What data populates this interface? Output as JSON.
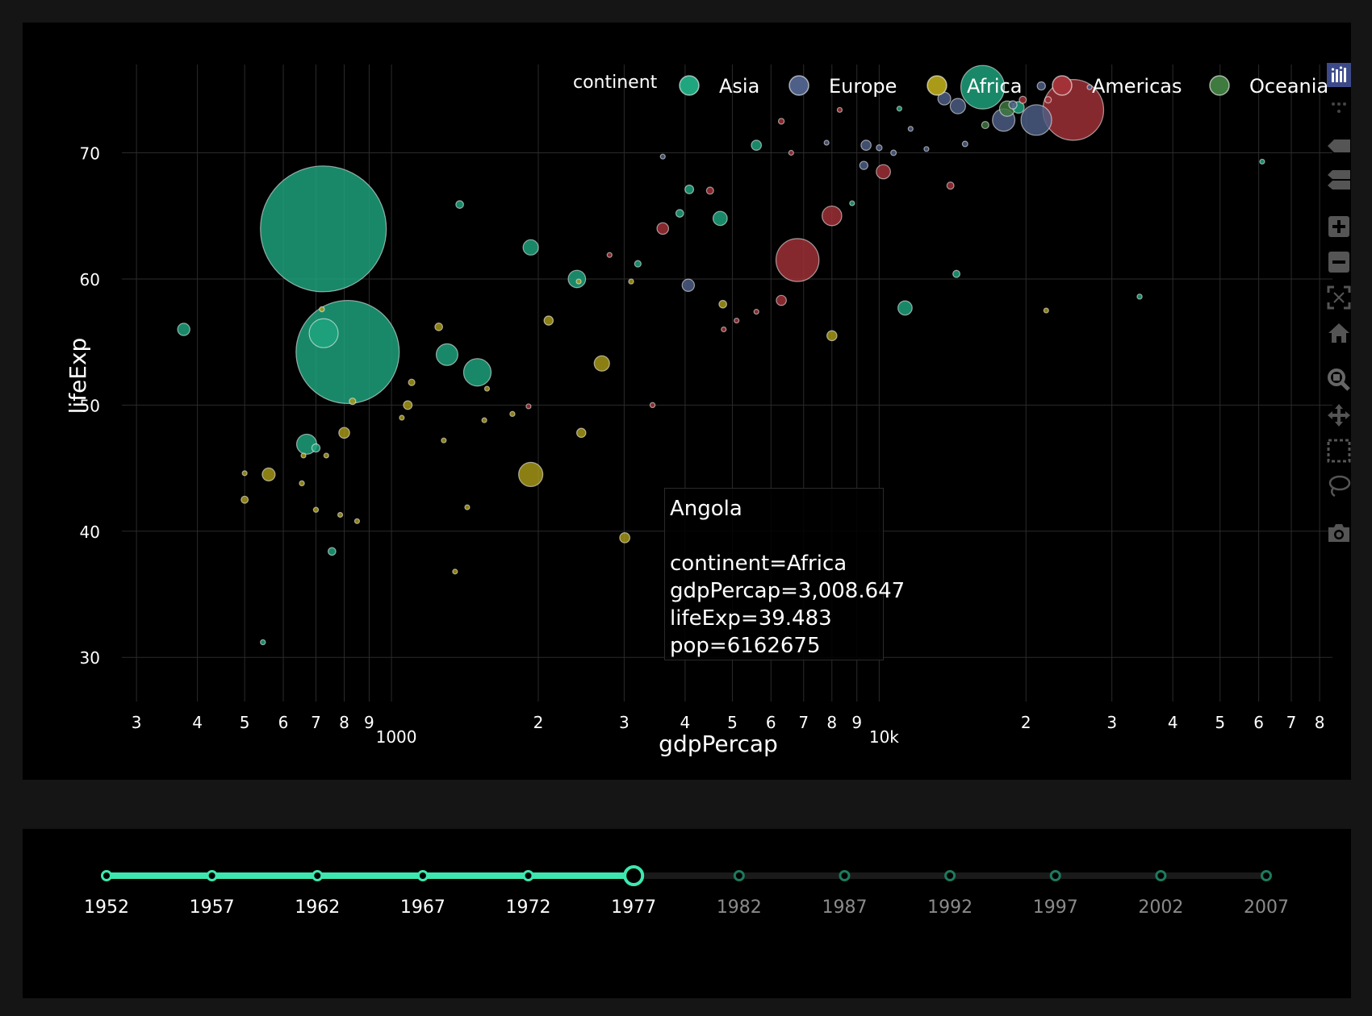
{
  "chart_data": {
    "type": "scatter",
    "title": "",
    "xlabel": "gdpPercap",
    "ylabel": "lifeExp",
    "xscale": "log",
    "xlim": [
      280,
      85000
    ],
    "ylim": [
      26.5,
      77
    ],
    "grid": true,
    "legend": {
      "title": "continent",
      "placement": "top-right",
      "entries": [
        {
          "name": "Asia",
          "color": "#1fa67f"
        },
        {
          "name": "Europe",
          "color": "#4e5f88"
        },
        {
          "name": "Africa",
          "color": "#a99b18"
        },
        {
          "name": "Americas",
          "color": "#a33238"
        },
        {
          "name": "Oceania",
          "color": "#3f7a3f"
        }
      ]
    },
    "x_major_ticks": [
      {
        "value": 1000,
        "label": "1000"
      },
      {
        "value": 10000,
        "label": "10k"
      }
    ],
    "x_minor_ticks": [
      {
        "value": 300,
        "label": "3"
      },
      {
        "value": 400,
        "label": "4"
      },
      {
        "value": 500,
        "label": "5"
      },
      {
        "value": 600,
        "label": "6"
      },
      {
        "value": 700,
        "label": "7"
      },
      {
        "value": 800,
        "label": "8"
      },
      {
        "value": 900,
        "label": "9"
      },
      {
        "value": 2000,
        "label": "2"
      },
      {
        "value": 3000,
        "label": "3"
      },
      {
        "value": 4000,
        "label": "4"
      },
      {
        "value": 5000,
        "label": "5"
      },
      {
        "value": 6000,
        "label": "6"
      },
      {
        "value": 7000,
        "label": "7"
      },
      {
        "value": 8000,
        "label": "8"
      },
      {
        "value": 9000,
        "label": "9"
      },
      {
        "value": 20000,
        "label": "2"
      },
      {
        "value": 30000,
        "label": "3"
      },
      {
        "value": 40000,
        "label": "4"
      },
      {
        "value": 50000,
        "label": "5"
      },
      {
        "value": 60000,
        "label": "6"
      },
      {
        "value": 70000,
        "label": "7"
      },
      {
        "value": 80000,
        "label": "8"
      }
    ],
    "y_ticks": [
      30,
      40,
      50,
      60,
      70
    ],
    "series": [
      {
        "name": "Asia",
        "color": "#1fa67f",
        "points": [
          {
            "x": 725,
            "y": 63.97,
            "pop": 943455000
          },
          {
            "x": 813,
            "y": 54.21,
            "pop": 634000000
          },
          {
            "x": 726,
            "y": 55.7,
            "pop": 50000000
          },
          {
            "x": 375,
            "y": 56.0,
            "pop": 9000000
          },
          {
            "x": 1380,
            "y": 65.9,
            "pop": 3500000
          },
          {
            "x": 1930,
            "y": 62.5,
            "pop": 14000000
          },
          {
            "x": 2400,
            "y": 60.0,
            "pop": 18000000
          },
          {
            "x": 1300,
            "y": 54.0,
            "pop": 28000000
          },
          {
            "x": 1500,
            "y": 52.6,
            "pop": 45000000
          },
          {
            "x": 670,
            "y": 46.9,
            "pop": 24000000
          },
          {
            "x": 700,
            "y": 46.6,
            "pop": 4000000
          },
          {
            "x": 545,
            "y": 31.2,
            "pop": 1500000
          },
          {
            "x": 755,
            "y": 38.4,
            "pop": 3500000
          },
          {
            "x": 3200,
            "y": 61.2,
            "pop": 2500000
          },
          {
            "x": 3900,
            "y": 65.2,
            "pop": 3500000
          },
          {
            "x": 4080,
            "y": 67.1,
            "pop": 4500000
          },
          {
            "x": 4720,
            "y": 64.8,
            "pop": 12000000
          },
          {
            "x": 5600,
            "y": 70.6,
            "pop": 6000000
          },
          {
            "x": 8800,
            "y": 66.0,
            "pop": 1000000
          },
          {
            "x": 11300,
            "y": 57.7,
            "pop": 12000000
          },
          {
            "x": 11000,
            "y": 73.5,
            "pop": 1200000
          },
          {
            "x": 14400,
            "y": 60.4,
            "pop": 3000000
          },
          {
            "x": 16300,
            "y": 75.2,
            "pop": 113000000
          },
          {
            "x": 19300,
            "y": 73.6,
            "pop": 8000000
          },
          {
            "x": 34200,
            "y": 58.6,
            "pop": 1500000
          },
          {
            "x": 61000,
            "y": 69.3,
            "pop": 300000
          }
        ]
      },
      {
        "name": "Europe",
        "color": "#4e5f88",
        "points": [
          {
            "x": 3600,
            "y": 69.7,
            "pop": 500000
          },
          {
            "x": 4060,
            "y": 59.5,
            "pop": 9000000
          },
          {
            "x": 7800,
            "y": 70.8,
            "pop": 1200000
          },
          {
            "x": 9400,
            "y": 70.6,
            "pop": 6000000
          },
          {
            "x": 9300,
            "y": 69.0,
            "pop": 4000000
          },
          {
            "x": 10000,
            "y": 70.4,
            "pop": 2000000
          },
          {
            "x": 10700,
            "y": 70.0,
            "pop": 1800000
          },
          {
            "x": 11600,
            "y": 71.9,
            "pop": 600000
          },
          {
            "x": 12500,
            "y": 70.3,
            "pop": 800000
          },
          {
            "x": 13600,
            "y": 74.3,
            "pop": 9800000
          },
          {
            "x": 14500,
            "y": 73.7,
            "pop": 14000000
          },
          {
            "x": 15000,
            "y": 70.7,
            "pop": 1800000
          },
          {
            "x": 18000,
            "y": 72.6,
            "pop": 30000000
          },
          {
            "x": 18800,
            "y": 73.8,
            "pop": 4000000
          },
          {
            "x": 21000,
            "y": 72.6,
            "pop": 56000000
          },
          {
            "x": 21500,
            "y": 75.3,
            "pop": 4000000
          },
          {
            "x": 27000,
            "y": 75.2,
            "pop": 900000
          }
        ]
      },
      {
        "name": "Africa",
        "color": "#a99b18",
        "points": [
          {
            "x": 3008.647,
            "y": 39.483,
            "pop": 6162675
          },
          {
            "x": 1930,
            "y": 44.5,
            "pop": 35000000
          },
          {
            "x": 2100,
            "y": 56.7,
            "pop": 5000000
          },
          {
            "x": 2700,
            "y": 53.3,
            "pop": 14000000
          },
          {
            "x": 2450,
            "y": 47.8,
            "pop": 5000000
          },
          {
            "x": 560,
            "y": 44.5,
            "pop": 10000000
          },
          {
            "x": 500,
            "y": 42.5,
            "pop": 3000000
          },
          {
            "x": 800,
            "y": 47.8,
            "pop": 7000000
          },
          {
            "x": 1080,
            "y": 50.0,
            "pop": 4500000
          },
          {
            "x": 1100,
            "y": 51.8,
            "pop": 2500000
          },
          {
            "x": 1250,
            "y": 56.2,
            "pop": 3500000
          },
          {
            "x": 720,
            "y": 57.6,
            "pop": 1500000
          },
          {
            "x": 660,
            "y": 46.0,
            "pop": 1200000
          },
          {
            "x": 655,
            "y": 43.8,
            "pop": 1500000
          },
          {
            "x": 700,
            "y": 41.7,
            "pop": 1500000
          },
          {
            "x": 785,
            "y": 41.3,
            "pop": 1200000
          },
          {
            "x": 832,
            "y": 50.3,
            "pop": 2500000
          },
          {
            "x": 1770,
            "y": 49.3,
            "pop": 1500000
          },
          {
            "x": 1570,
            "y": 51.3,
            "pop": 1200000
          },
          {
            "x": 1550,
            "y": 48.8,
            "pop": 1000000
          },
          {
            "x": 1430,
            "y": 41.9,
            "pop": 1000000
          },
          {
            "x": 1350,
            "y": 36.8,
            "pop": 800000
          },
          {
            "x": 4780,
            "y": 58.0,
            "pop": 3500000
          },
          {
            "x": 8000,
            "y": 55.5,
            "pop": 6000000
          },
          {
            "x": 3100,
            "y": 59.8,
            "pop": 1500000
          },
          {
            "x": 500,
            "y": 44.6,
            "pop": 600000
          },
          {
            "x": 735,
            "y": 46.0,
            "pop": 1000000
          },
          {
            "x": 850,
            "y": 40.8,
            "pop": 800000
          },
          {
            "x": 1280,
            "y": 47.2,
            "pop": 700000
          },
          {
            "x": 1050,
            "y": 49.0,
            "pop": 900000
          },
          {
            "x": 2420,
            "y": 59.8,
            "pop": 1200000
          },
          {
            "x": 22000,
            "y": 57.5,
            "pop": 500000
          }
        ]
      },
      {
        "name": "Americas",
        "color": "#a33238",
        "points": [
          {
            "x": 25000,
            "y": 73.4,
            "pop": 220000000
          },
          {
            "x": 6800,
            "y": 61.5,
            "pop": 110000000
          },
          {
            "x": 8000,
            "y": 65.0,
            "pop": 23000000
          },
          {
            "x": 10200,
            "y": 68.5,
            "pop": 12000000
          },
          {
            "x": 6300,
            "y": 58.3,
            "pop": 6000000
          },
          {
            "x": 3600,
            "y": 64.0,
            "pop": 8000000
          },
          {
            "x": 4500,
            "y": 67.0,
            "pop": 3000000
          },
          {
            "x": 2800,
            "y": 61.9,
            "pop": 800000
          },
          {
            "x": 3430,
            "y": 50.0,
            "pop": 1500000
          },
          {
            "x": 1910,
            "y": 49.9,
            "pop": 800000
          },
          {
            "x": 4800,
            "y": 56.0,
            "pop": 1000000
          },
          {
            "x": 5100,
            "y": 56.7,
            "pop": 1000000
          },
          {
            "x": 5600,
            "y": 57.4,
            "pop": 600000
          },
          {
            "x": 6300,
            "y": 72.5,
            "pop": 2000000
          },
          {
            "x": 6600,
            "y": 70.0,
            "pop": 800000
          },
          {
            "x": 8300,
            "y": 73.4,
            "pop": 1000000
          },
          {
            "x": 14000,
            "y": 67.4,
            "pop": 3000000
          },
          {
            "x": 19700,
            "y": 74.2,
            "pop": 3000000
          },
          {
            "x": 22200,
            "y": 74.2,
            "pop": 2500000
          }
        ]
      },
      {
        "name": "Oceania",
        "color": "#3f7a3f",
        "points": [
          {
            "x": 18300,
            "y": 73.5,
            "pop": 14000000
          },
          {
            "x": 16500,
            "y": 72.2,
            "pop": 3100000
          }
        ]
      }
    ],
    "hover": {
      "title": "Angola",
      "lines": [
        "continent=Africa",
        "gdpPercap=3,008.647",
        "lifeExp=39.483",
        "pop=6162675"
      ]
    }
  },
  "slider": {
    "steps": [
      "1952",
      "1957",
      "1962",
      "1967",
      "1972",
      "1977",
      "1982",
      "1987",
      "1992",
      "1997",
      "2002",
      "2007"
    ],
    "active": "1977",
    "active_color": "#3de8b0",
    "inactive_color": "#1d7a5e"
  },
  "modebar": {
    "icons": [
      "plotly-logo-icon",
      "hover-compare-icon",
      "hover-closest-icon",
      "hover-multi-icon",
      "zoom-in-icon",
      "zoom-out-icon",
      "autoscale-icon",
      "reset-axes-icon",
      "zoom-icon",
      "pan-icon",
      "box-select-icon",
      "lasso-select-icon",
      "camera-icon"
    ]
  }
}
